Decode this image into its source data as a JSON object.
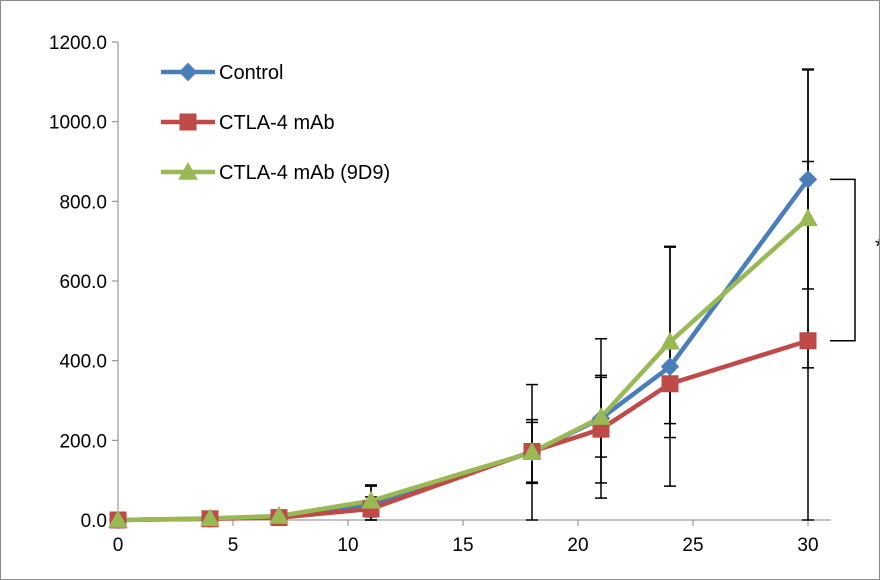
{
  "chart_data": {
    "type": "line",
    "title": "",
    "xlabel": "",
    "ylabel": "",
    "x": [
      0,
      4,
      7,
      11,
      18,
      21,
      24,
      30
    ],
    "xlim": [
      0,
      31
    ],
    "ylim": [
      0,
      1200
    ],
    "x_ticks": [
      "0",
      "5",
      "10",
      "15",
      "20",
      "25",
      "30"
    ],
    "x_tick_values": [
      0,
      5,
      10,
      15,
      20,
      25,
      30
    ],
    "y_ticks": [
      "0.0",
      "200.0",
      "400.0",
      "600.0",
      "800.0",
      "1000.0",
      "1200.0"
    ],
    "y_tick_values": [
      0,
      200,
      400,
      600,
      800,
      1000,
      1200
    ],
    "grid": false,
    "legend_position": "top-left",
    "series": [
      {
        "name": "Control",
        "color": "#4a7ebb",
        "marker": "diamond",
        "values": [
          0,
          3,
          8,
          40,
          170,
          255,
          385,
          855
        ],
        "error": [
          0,
          2,
          4,
          45,
          170,
          200,
          300,
          275
        ]
      },
      {
        "name": "CTLA-4 mAb",
        "color": "#be4b48",
        "marker": "square",
        "values": [
          0,
          3,
          6,
          28,
          172,
          228,
          342,
          450
        ],
        "error": [
          0,
          2,
          4,
          30,
          80,
          135,
          100,
          450
        ]
      },
      {
        "name": "CTLA-4 mAb (9D9)",
        "color": "#98b954",
        "marker": "triangle",
        "values": [
          0,
          4,
          10,
          48,
          170,
          258,
          447,
          757
        ],
        "error": [
          0,
          2,
          5,
          40,
          75,
          100,
          240,
          375
        ]
      }
    ],
    "annotations": [
      {
        "text": "*",
        "between_series": [
          "Control",
          "CTLA-4 mAb"
        ],
        "at_x": 30
      }
    ]
  }
}
